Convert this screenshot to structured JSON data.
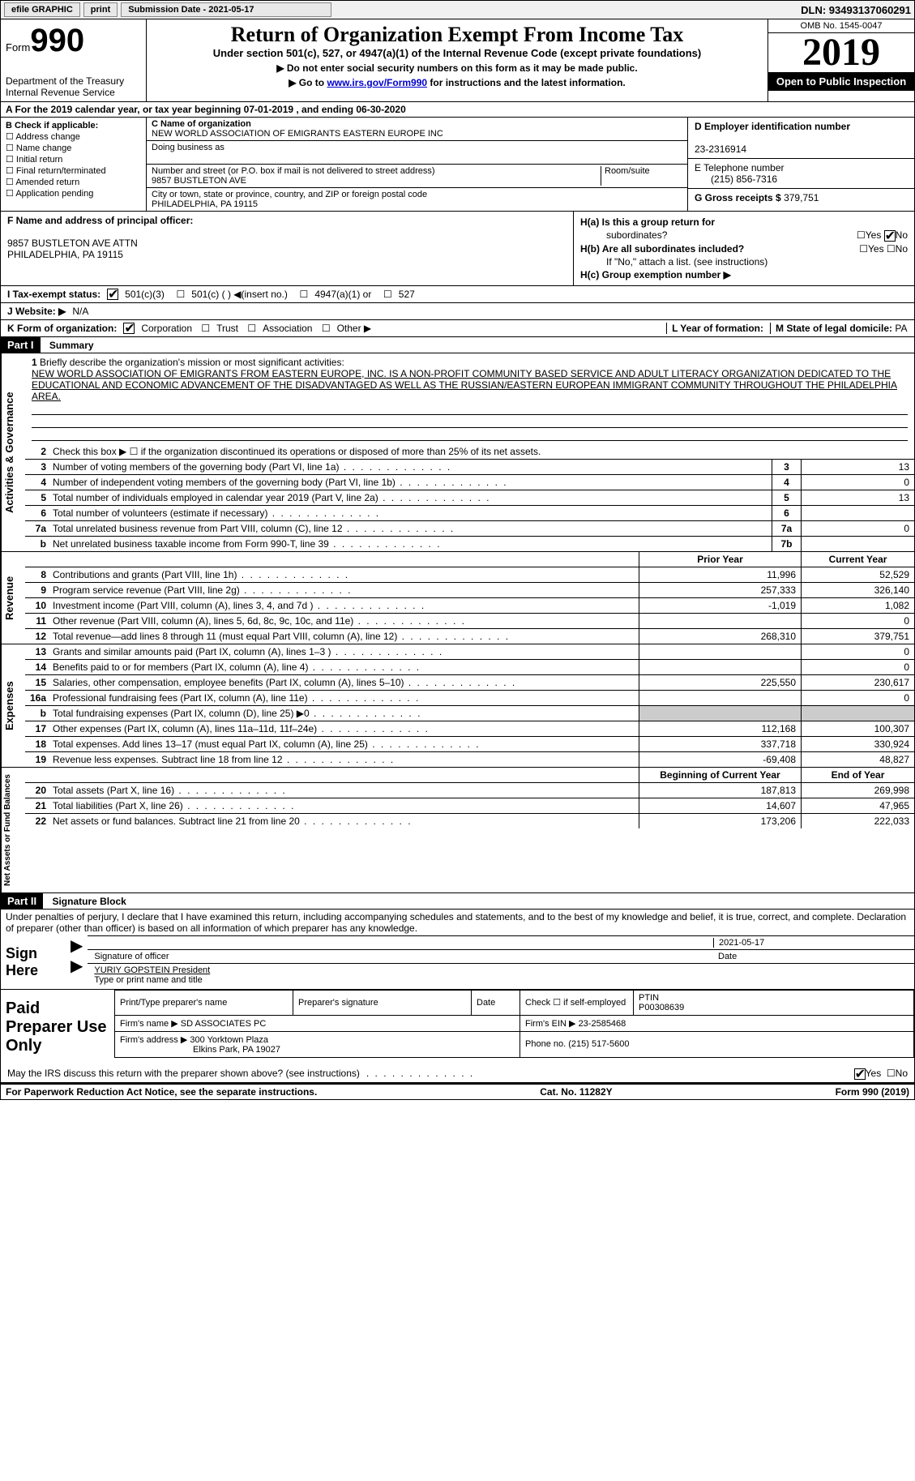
{
  "topbar": {
    "efile": "efile GRAPHIC",
    "print": "print",
    "submission_label": "Submission Date - 2021-05-17",
    "dln": "DLN: 93493137060291"
  },
  "header": {
    "form_prefix": "Form",
    "form_number": "990",
    "dept": "Department of the Treasury",
    "irs": "Internal Revenue Service",
    "title": "Return of Organization Exempt From Income Tax",
    "subtitle": "Under section 501(c), 527, or 4947(a)(1) of the Internal Revenue Code (except private foundations)",
    "instr1": "▶ Do not enter social security numbers on this form as it may be made public.",
    "instr2_pre": "▶ Go to ",
    "instr2_link": "www.irs.gov/Form990",
    "instr2_post": " for instructions and the latest information.",
    "omb": "OMB No. 1545-0047",
    "year": "2019",
    "open": "Open to Public Inspection"
  },
  "period": "A For the 2019 calendar year, or tax year beginning 07-01-2019    , and ending 06-30-2020",
  "boxB": {
    "label": "B Check if applicable:",
    "items": [
      "Address change",
      "Name change",
      "Initial return",
      "Final return/terminated",
      "Amended return",
      "Application pending"
    ]
  },
  "boxC": {
    "name_lbl": "C Name of organization",
    "name": "NEW WORLD ASSOCIATION OF EMIGRANTS EASTERN EUROPE INC",
    "dba_lbl": "Doing business as",
    "dba": "",
    "addr_lbl": "Number and street (or P.O. box if mail is not delivered to street address)",
    "room_lbl": "Room/suite",
    "addr": "9857 BUSTLETON AVE",
    "city_lbl": "City or town, state or province, country, and ZIP or foreign postal code",
    "city": "PHILADELPHIA, PA  19115"
  },
  "boxD": {
    "ein_lbl": "D Employer identification number",
    "ein": "23-2316914",
    "phone_lbl": "E Telephone number",
    "phone": "(215) 856-7316",
    "gross_lbl": "G Gross receipts $ ",
    "gross": "379,751"
  },
  "boxF": {
    "label": "F Name and address of principal officer:",
    "addr1": "9857 BUSTLETON AVE ATTN",
    "addr2": "PHILADELPHIA, PA  19115"
  },
  "boxH": {
    "a_lbl": "H(a)  Is this a group return for",
    "a_sub": "subordinates?",
    "a_no_checked": true,
    "b_lbl": "H(b)  Are all subordinates included?",
    "b_note": "If \"No,\" attach a list. (see instructions)",
    "c_lbl": "H(c)  Group exemption number ▶"
  },
  "rowI": {
    "label": "I Tax-exempt status:",
    "opts": [
      "501(c)(3)",
      "501(c) (  ) ◀(insert no.)",
      "4947(a)(1) or",
      "527"
    ]
  },
  "rowJ": {
    "label": "J Website: ▶",
    "val": "N/A"
  },
  "rowK": {
    "label": "K Form of organization:",
    "opts": [
      "Corporation",
      "Trust",
      "Association",
      "Other ▶"
    ]
  },
  "rowL": {
    "label": "L Year of formation:",
    "val": ""
  },
  "rowM": {
    "label": "M State of legal domicile: ",
    "val": "PA"
  },
  "part1": {
    "header": "Part I",
    "title": "Summary",
    "side1": "Activities & Governance",
    "side2": "Revenue",
    "side3": "Expenses",
    "side4": "Net Assets or Fund Balances",
    "q1": "Briefly describe the organization's mission or most significant activities:",
    "mission": "NEW WORLD ASSOCIATION OF EMIGRANTS FROM EASTERN EUROPE, INC. IS A NON-PROFIT COMMUNITY BASED SERVICE AND ADULT LITERACY ORGANIZATION DEDICATED TO THE EDUCATIONAL AND ECONOMIC ADVANCEMENT OF THE DISADVANTAGED AS WELL AS THE RUSSIAN/EASTERN EUROPEAN IMMIGRANT COMMUNITY THROUGHOUT THE PHILADELPHIA AREA.",
    "q2": "Check this box ▶ ☐ if the organization discontinued its operations or disposed of more than 25% of its net assets.",
    "lines_gov": [
      {
        "n": "3",
        "t": "Number of voting members of the governing body (Part VI, line 1a)",
        "c": "3",
        "v": "13"
      },
      {
        "n": "4",
        "t": "Number of independent voting members of the governing body (Part VI, line 1b)",
        "c": "4",
        "v": "0"
      },
      {
        "n": "5",
        "t": "Total number of individuals employed in calendar year 2019 (Part V, line 2a)",
        "c": "5",
        "v": "13"
      },
      {
        "n": "6",
        "t": "Total number of volunteers (estimate if necessary)",
        "c": "6",
        "v": ""
      },
      {
        "n": "7a",
        "t": "Total unrelated business revenue from Part VIII, column (C), line 12",
        "c": "7a",
        "v": "0"
      },
      {
        "n": "b",
        "t": "Net unrelated business taxable income from Form 990-T, line 39",
        "c": "7b",
        "v": ""
      }
    ],
    "col_hdr": {
      "prior": "Prior Year",
      "current": "Current Year"
    },
    "lines_rev": [
      {
        "n": "8",
        "t": "Contributions and grants (Part VIII, line 1h)",
        "p": "11,996",
        "c": "52,529"
      },
      {
        "n": "9",
        "t": "Program service revenue (Part VIII, line 2g)",
        "p": "257,333",
        "c": "326,140"
      },
      {
        "n": "10",
        "t": "Investment income (Part VIII, column (A), lines 3, 4, and 7d )",
        "p": "-1,019",
        "c": "1,082"
      },
      {
        "n": "11",
        "t": "Other revenue (Part VIII, column (A), lines 5, 6d, 8c, 9c, 10c, and 11e)",
        "p": "",
        "c": "0"
      },
      {
        "n": "12",
        "t": "Total revenue—add lines 8 through 11 (must equal Part VIII, column (A), line 12)",
        "p": "268,310",
        "c": "379,751"
      }
    ],
    "lines_exp": [
      {
        "n": "13",
        "t": "Grants and similar amounts paid (Part IX, column (A), lines 1–3 )",
        "p": "",
        "c": "0"
      },
      {
        "n": "14",
        "t": "Benefits paid to or for members (Part IX, column (A), line 4)",
        "p": "",
        "c": "0"
      },
      {
        "n": "15",
        "t": "Salaries, other compensation, employee benefits (Part IX, column (A), lines 5–10)",
        "p": "225,550",
        "c": "230,617"
      },
      {
        "n": "16a",
        "t": "Professional fundraising fees (Part IX, column (A), line 11e)",
        "p": "",
        "c": "0"
      },
      {
        "n": "b",
        "t": "Total fundraising expenses (Part IX, column (D), line 25) ▶0",
        "p": "shade",
        "c": "shade"
      },
      {
        "n": "17",
        "t": "Other expenses (Part IX, column (A), lines 11a–11d, 11f–24e)",
        "p": "112,168",
        "c": "100,307"
      },
      {
        "n": "18",
        "t": "Total expenses. Add lines 13–17 (must equal Part IX, column (A), line 25)",
        "p": "337,718",
        "c": "330,924"
      },
      {
        "n": "19",
        "t": "Revenue less expenses. Subtract line 18 from line 12",
        "p": "-69,408",
        "c": "48,827"
      }
    ],
    "col_hdr2": {
      "prior": "Beginning of Current Year",
      "current": "End of Year"
    },
    "lines_net": [
      {
        "n": "20",
        "t": "Total assets (Part X, line 16)",
        "p": "187,813",
        "c": "269,998"
      },
      {
        "n": "21",
        "t": "Total liabilities (Part X, line 26)",
        "p": "14,607",
        "c": "47,965"
      },
      {
        "n": "22",
        "t": "Net assets or fund balances. Subtract line 21 from line 20",
        "p": "173,206",
        "c": "222,033"
      }
    ]
  },
  "part2": {
    "header": "Part II",
    "title": "Signature Block",
    "perjury": "Under penalties of perjury, I declare that I have examined this return, including accompanying schedules and statements, and to the best of my knowledge and belief, it is true, correct, and complete. Declaration of preparer (other than officer) is based on all information of which preparer has any knowledge.",
    "sign_here": "Sign Here",
    "sig_officer": "Signature of officer",
    "sig_date": "2021-05-17",
    "date_lbl": "Date",
    "officer_name": "YURIY GOPSTEIN  President",
    "type_name": "Type or print name and title",
    "paid_prep": "Paid Preparer Use Only",
    "prep_hdr": [
      "Print/Type preparer's name",
      "Preparer's signature",
      "Date"
    ],
    "ptin_lbl": "PTIN",
    "ptin": "P00308639",
    "check_self": "Check ☐ if self-employed",
    "firm_name_lbl": "Firm's name    ▶",
    "firm_name": "SD ASSOCIATES PC",
    "firm_ein_lbl": "Firm's EIN ▶",
    "firm_ein": "23-2585468",
    "firm_addr_lbl": "Firm's address ▶",
    "firm_addr": "300 Yorktown Plaza",
    "firm_city": "Elkins Park, PA  19027",
    "firm_phone_lbl": "Phone no.",
    "firm_phone": "(215) 517-5600",
    "discuss": "May the IRS discuss this return with the preparer shown above? (see instructions)",
    "discuss_yes": true
  },
  "footer": {
    "paperwork": "For Paperwork Reduction Act Notice, see the separate instructions.",
    "cat": "Cat. No. 11282Y",
    "form": "Form 990 (2019)"
  }
}
